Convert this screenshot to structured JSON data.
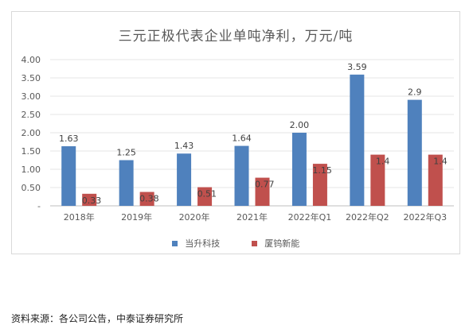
{
  "chart_data": {
    "type": "bar",
    "title": "三元正极代表企业单吨净利，万元/吨",
    "categories": [
      "2018年",
      "2019年",
      "2020年",
      "2021年",
      "2022年Q1",
      "2022年Q2",
      "2022年Q3"
    ],
    "series": [
      {
        "name": "当升科技",
        "color": "#4f81bd",
        "values": [
          1.63,
          1.25,
          1.43,
          1.64,
          2.0,
          3.59,
          2.9
        ],
        "labels": [
          "1.63",
          "1.25",
          "1.43",
          "1.64",
          "2.00",
          "3.59",
          "2.9"
        ]
      },
      {
        "name": "厦钨新能",
        "color": "#c0504d",
        "values": [
          0.33,
          0.38,
          0.51,
          0.77,
          1.15,
          1.4,
          1.4
        ],
        "labels": [
          "0.33",
          "0.38",
          "0.51",
          "0.77",
          "1.15",
          "1.4",
          "1.4"
        ]
      }
    ],
    "ylim": [
      0,
      4
    ],
    "yticks": [
      {
        "value": 4.0,
        "label": "4.00"
      },
      {
        "value": 3.5,
        "label": "3.50"
      },
      {
        "value": 3.0,
        "label": "3.00"
      },
      {
        "value": 2.5,
        "label": "2.50"
      },
      {
        "value": 2.0,
        "label": "2.00"
      },
      {
        "value": 1.5,
        "label": "1.50"
      },
      {
        "value": 1.0,
        "label": "1.00"
      },
      {
        "value": 0.5,
        "label": "0.50"
      },
      {
        "value": 0,
        "label": "-"
      }
    ],
    "grid": true,
    "legend": "bottom"
  },
  "source_note": "资料来源：各公司公告，中泰证券研究所"
}
